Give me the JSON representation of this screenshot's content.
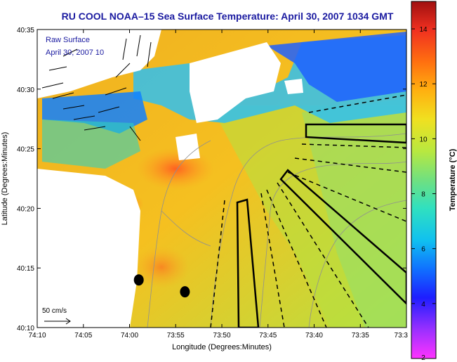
{
  "chart_data": {
    "type": "heatmap",
    "title": "RU COOL  NOAA–15  Sea Surface Temperature:  April 30, 2007 1034 GMT",
    "xlabel": "Longitude (Degrees:Minutes)",
    "ylabel": "Latitude (Degrees:Minutes)",
    "x_tick_labels": [
      "74:10",
      "74:05",
      "74:00",
      "73:55",
      "73:50",
      "73:45",
      "73:40",
      "73:35",
      "73:3"
    ],
    "x_tick_values": [
      -74.1667,
      -74.0833,
      -74.0,
      -73.9167,
      -73.8333,
      -73.75,
      -73.6667,
      -73.5833,
      -73.5
    ],
    "y_tick_labels": [
      "40:10",
      "40:15",
      "40:20",
      "40:25",
      "40:30",
      "40:35"
    ],
    "y_tick_values": [
      40.1667,
      40.25,
      40.3333,
      40.4167,
      40.5,
      40.5833
    ],
    "xlim": [
      -74.1667,
      -73.5
    ],
    "ylim": [
      40.1667,
      40.5833
    ],
    "colorbar": {
      "label": "Temperature (°C)",
      "range": [
        2,
        15
      ],
      "tick_labels": [
        "2",
        "4",
        "6",
        "8",
        "10",
        "12",
        "14"
      ],
      "tick_values": [
        2,
        4,
        6,
        8,
        10,
        12,
        14
      ]
    },
    "overlay_text": {
      "line1": "Raw Surface",
      "line2": "April 30, 2007 10"
    },
    "scale_label": "50 cm/s",
    "markers": [
      {
        "lon": -73.9833,
        "lat": 40.2333
      },
      {
        "lon": -73.9,
        "lat": 40.2167
      }
    ],
    "grid": false
  }
}
